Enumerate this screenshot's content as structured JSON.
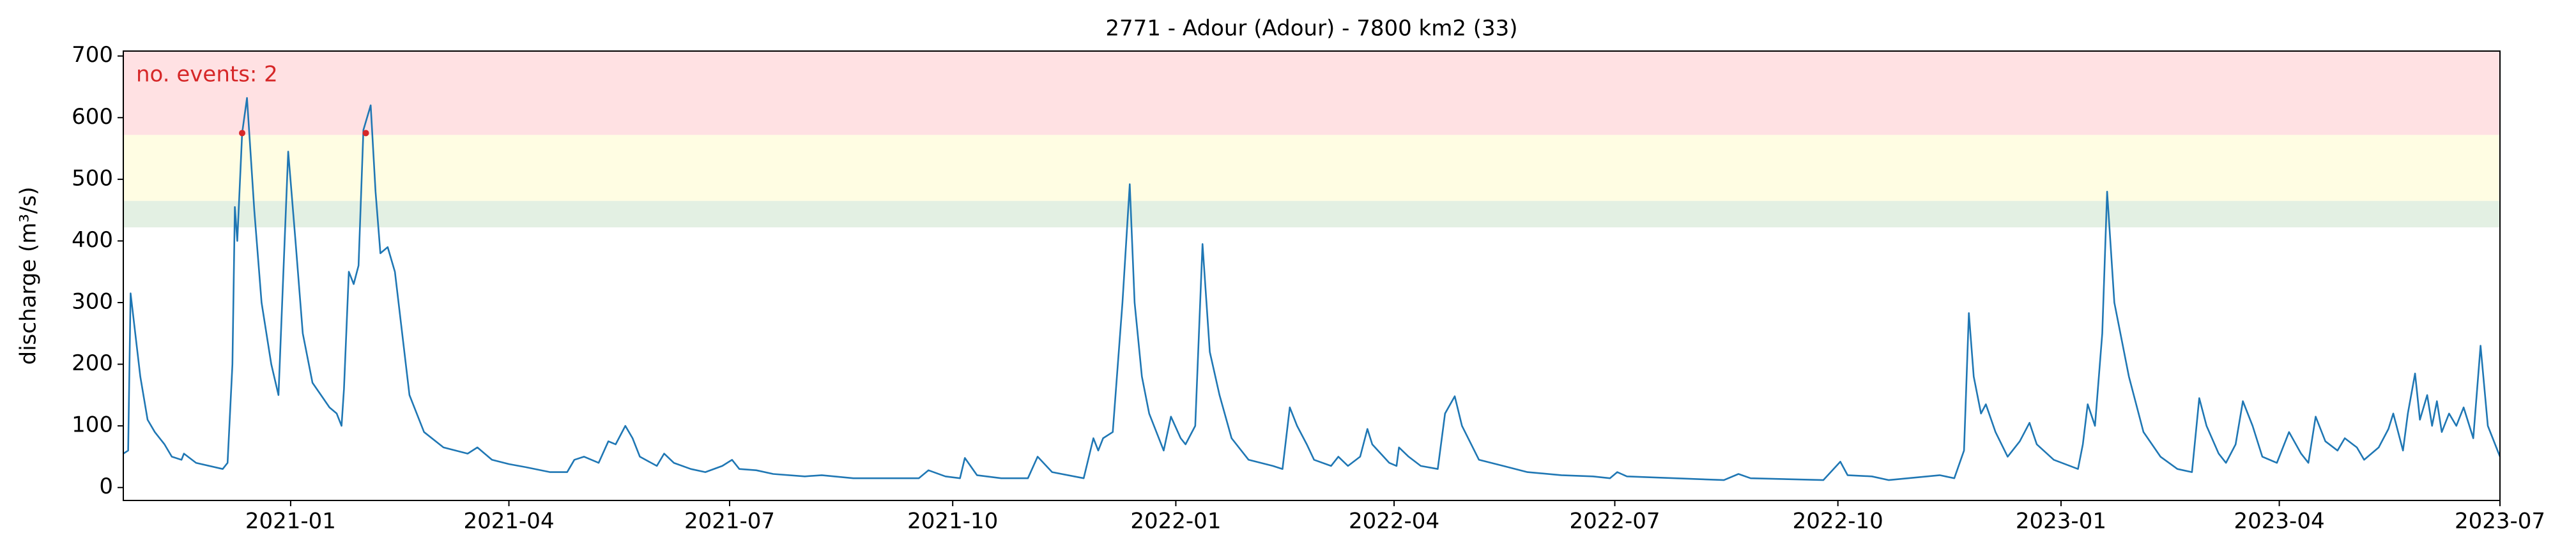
{
  "chart_data": {
    "type": "line",
    "title": "2771 - Adour (Adour) - 7800 km2 (33)",
    "ylabel": "discharge (m³/s)",
    "annotation": "no. events: 2",
    "annotation_color": "#d62728",
    "xlim": [
      "2020-10-24",
      "2023-07-01"
    ],
    "ylim": [
      -21,
      708
    ],
    "yticks": [
      0,
      100,
      200,
      300,
      400,
      500,
      600,
      700
    ],
    "xticks": [
      {
        "value": "2021-01-01",
        "label": "2021-01"
      },
      {
        "value": "2021-04-01",
        "label": "2021-04"
      },
      {
        "value": "2021-07-01",
        "label": "2021-07"
      },
      {
        "value": "2021-10-01",
        "label": "2021-10"
      },
      {
        "value": "2022-01-01",
        "label": "2022-01"
      },
      {
        "value": "2022-04-01",
        "label": "2022-04"
      },
      {
        "value": "2022-07-01",
        "label": "2022-07"
      },
      {
        "value": "2022-10-01",
        "label": "2022-10"
      },
      {
        "value": "2023-01-01",
        "label": "2023-01"
      },
      {
        "value": "2023-04-01",
        "label": "2023-04"
      },
      {
        "value": "2023-07-01",
        "label": "2023-07"
      }
    ],
    "bands": [
      {
        "from": 422,
        "to": 465,
        "color": "#e3f0e3"
      },
      {
        "from": 465,
        "to": 572,
        "color": "#fffde3"
      },
      {
        "from": 572,
        "color": "#ffe1e3"
      }
    ],
    "x": [
      "2020-10-24",
      "2020-10-26",
      "2020-10-27",
      "2020-10-31",
      "2020-11-03",
      "2020-11-06",
      "2020-11-10",
      "2020-11-13",
      "2020-11-17",
      "2020-11-18",
      "2020-11-23",
      "2020-12-04",
      "2020-12-06",
      "2020-12-08",
      "2020-12-09",
      "2020-12-10",
      "2020-12-12",
      "2020-12-14",
      "2020-12-17",
      "2020-12-20",
      "2020-12-24",
      "2020-12-27",
      "2020-12-31",
      "2021-01-03",
      "2021-01-06",
      "2021-01-10",
      "2021-01-17",
      "2021-01-20",
      "2021-01-22",
      "2021-01-23",
      "2021-01-25",
      "2021-01-27",
      "2021-01-29",
      "2021-01-31",
      "2021-02-03",
      "2021-02-05",
      "2021-02-07",
      "2021-02-10",
      "2021-02-13",
      "2021-02-16",
      "2021-02-19",
      "2021-02-25",
      "2021-03-05",
      "2021-03-15",
      "2021-03-19",
      "2021-03-22",
      "2021-03-25",
      "2021-04-01",
      "2021-04-08",
      "2021-04-18",
      "2021-04-25",
      "2021-04-28",
      "2021-05-02",
      "2021-05-08",
      "2021-05-12",
      "2021-05-15",
      "2021-05-19",
      "2021-05-22",
      "2021-05-25",
      "2021-06-01",
      "2021-06-04",
      "2021-06-08",
      "2021-06-15",
      "2021-06-21",
      "2021-06-28",
      "2021-07-02",
      "2021-07-05",
      "2021-07-12",
      "2021-07-19",
      "2021-08-01",
      "2021-08-08",
      "2021-08-21",
      "2021-09-17",
      "2021-09-21",
      "2021-09-28",
      "2021-10-04",
      "2021-10-06",
      "2021-10-11",
      "2021-10-21",
      "2021-11-01",
      "2021-11-05",
      "2021-11-11",
      "2021-11-24",
      "2021-11-28",
      "2021-11-30",
      "2021-12-02",
      "2021-12-06",
      "2021-12-10",
      "2021-12-13",
      "2021-12-15",
      "2021-12-18",
      "2021-12-21",
      "2021-12-27",
      "2021-12-30",
      "2022-01-03",
      "2022-01-05",
      "2022-01-09",
      "2022-01-12",
      "2022-01-15",
      "2022-01-19",
      "2022-01-24",
      "2022-01-31",
      "2022-02-10",
      "2022-02-14",
      "2022-02-17",
      "2022-02-20",
      "2022-02-24",
      "2022-02-27",
      "2022-03-06",
      "2022-03-09",
      "2022-03-13",
      "2022-03-18",
      "2022-03-21",
      "2022-03-23",
      "2022-03-30",
      "2022-04-02",
      "2022-04-03",
      "2022-04-07",
      "2022-04-12",
      "2022-04-19",
      "2022-04-22",
      "2022-04-26",
      "2022-04-29",
      "2022-05-06",
      "2022-05-16",
      "2022-05-26",
      "2022-06-09",
      "2022-06-22",
      "2022-06-29",
      "2022-07-02",
      "2022-07-06",
      "2022-08-15",
      "2022-08-21",
      "2022-08-26",
      "2022-09-25",
      "2022-10-02",
      "2022-10-05",
      "2022-10-15",
      "2022-10-22",
      "2022-11-12",
      "2022-11-18",
      "2022-11-22",
      "2022-11-24",
      "2022-11-26",
      "2022-11-29",
      "2022-12-01",
      "2022-12-05",
      "2022-12-10",
      "2022-12-15",
      "2022-12-19",
      "2022-12-22",
      "2022-12-29",
      "2023-01-08",
      "2023-01-10",
      "2023-01-12",
      "2023-01-15",
      "2023-01-18",
      "2023-01-20",
      "2023-01-23",
      "2023-01-29",
      "2023-02-04",
      "2023-02-11",
      "2023-02-18",
      "2023-02-24",
      "2023-02-27",
      "2023-03-02",
      "2023-03-07",
      "2023-03-10",
      "2023-03-14",
      "2023-03-17",
      "2023-03-21",
      "2023-03-25",
      "2023-03-31",
      "2023-04-05",
      "2023-04-10",
      "2023-04-13",
      "2023-04-16",
      "2023-04-20",
      "2023-04-25",
      "2023-04-28",
      "2023-05-03",
      "2023-05-06",
      "2023-05-12",
      "2023-05-16",
      "2023-05-18",
      "2023-05-22",
      "2023-05-24",
      "2023-05-27",
      "2023-05-29",
      "2023-06-01",
      "2023-06-03",
      "2023-06-05",
      "2023-06-07",
      "2023-06-10",
      "2023-06-13",
      "2023-06-16",
      "2023-06-20",
      "2023-06-23",
      "2023-06-26",
      "2023-07-01"
    ],
    "series": [
      {
        "color": "#1f77b4",
        "values": [
          55,
          60,
          315,
          180,
          110,
          90,
          70,
          50,
          45,
          55,
          40,
          30,
          40,
          200,
          455,
          400,
          575,
          632,
          450,
          300,
          200,
          150,
          545,
          400,
          250,
          170,
          130,
          120,
          100,
          160,
          350,
          330,
          360,
          580,
          620,
          480,
          380,
          390,
          350,
          250,
          150,
          90,
          65,
          55,
          65,
          55,
          45,
          38,
          33,
          25,
          25,
          45,
          50,
          40,
          75,
          70,
          100,
          80,
          50,
          35,
          55,
          40,
          30,
          25,
          35,
          45,
          30,
          28,
          22,
          18,
          20,
          15,
          15,
          28,
          18,
          15,
          48,
          20,
          15,
          15,
          50,
          25,
          15,
          80,
          60,
          80,
          90,
          300,
          492,
          300,
          180,
          120,
          60,
          115,
          80,
          70,
          100,
          395,
          220,
          150,
          80,
          45,
          35,
          30,
          130,
          100,
          70,
          45,
          35,
          50,
          35,
          50,
          95,
          70,
          40,
          35,
          65,
          50,
          35,
          30,
          120,
          148,
          100,
          45,
          35,
          25,
          20,
          18,
          15,
          25,
          18,
          12,
          22,
          15,
          12,
          42,
          20,
          18,
          12,
          20,
          15,
          60,
          283,
          180,
          120,
          135,
          90,
          50,
          75,
          105,
          70,
          45,
          30,
          70,
          135,
          100,
          250,
          480,
          300,
          180,
          90,
          50,
          30,
          25,
          145,
          100,
          55,
          40,
          70,
          140,
          100,
          50,
          40,
          90,
          55,
          40,
          115,
          75,
          60,
          80,
          65,
          45,
          65,
          95,
          120,
          60,
          120,
          185,
          110,
          150,
          100,
          140,
          90,
          120,
          100,
          130,
          80,
          230,
          100,
          50
        ]
      }
    ],
    "event_points": {
      "color": "#d62728",
      "x": [
        "2020-12-12",
        "2021-02-01"
      ],
      "values": [
        575,
        575
      ]
    }
  }
}
